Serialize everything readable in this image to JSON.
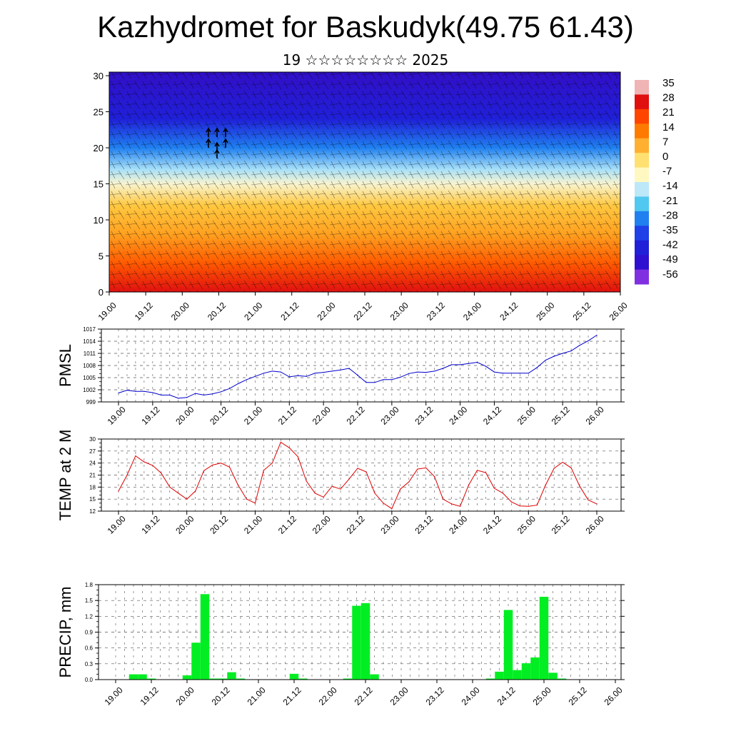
{
  "header": {
    "title": "Kazhydromet for Baskudyk(49.75 61.43)",
    "subtitle": "19 ☆☆☆☆☆☆☆☆ 2025"
  },
  "chart_data": [
    {
      "type": "heatmap",
      "name": "cross-section",
      "x_ticks": [
        "19.00",
        "19.12",
        "20.00",
        "20.12",
        "21.00",
        "21.12",
        "22.00",
        "22.12",
        "23.00",
        "23.12",
        "24.00",
        "24.12",
        "25.00",
        "25.12",
        "26.00"
      ],
      "y_ticks": [
        "0",
        "5",
        "10",
        "15",
        "20",
        "25",
        "30"
      ],
      "ylim": [
        0,
        30.5
      ],
      "colorbar_labels": [
        "35",
        "28",
        "21",
        "14",
        "7",
        "0",
        "-7",
        "-14",
        "-21",
        "-28",
        "-35",
        "-42",
        "-49",
        "-56"
      ],
      "colorbar_colors": [
        "#f0b4b4",
        "#e01010",
        "#ff4500",
        "#ff7a00",
        "#ffb030",
        "#ffe070",
        "#fff8c0",
        "#bde8f8",
        "#50c8f0",
        "#2080f0",
        "#2040e8",
        "#2020d8",
        "#3010d0",
        "#8030e0"
      ],
      "level_temperature": {
        "heights": [
          0,
          4,
          8,
          12,
          15,
          17,
          20,
          24,
          30
        ],
        "values": [
          30,
          22,
          12,
          2,
          -8,
          -20,
          -35,
          -48,
          -56
        ]
      }
    },
    {
      "type": "line",
      "name": "pmsl",
      "ylabel": "PMSL",
      "x_ticks": [
        "19.00",
        "19.12",
        "20.00",
        "20.12",
        "21.00",
        "21.12",
        "22.00",
        "22.12",
        "23.00",
        "23.12",
        "24.00",
        "24.12",
        "25.00",
        "25.12",
        "26.00"
      ],
      "y_ticks": [
        "999",
        "1002",
        "1005",
        "1008",
        "1011",
        "1014",
        "1017"
      ],
      "ylim": [
        999,
        1017
      ],
      "color": "#0000cc",
      "x": [
        0,
        3,
        6,
        9,
        12,
        15,
        18,
        21,
        24,
        27,
        30,
        33,
        36,
        39,
        42,
        45,
        48,
        51,
        54,
        57,
        60,
        63,
        66,
        69,
        72,
        75,
        78,
        81,
        84,
        87,
        90,
        93,
        96,
        99,
        102,
        105,
        108,
        111,
        114,
        117,
        120,
        123,
        126,
        129,
        132,
        135,
        138,
        141,
        144,
        147,
        150,
        153,
        156,
        159,
        162,
        165,
        168
      ],
      "values": [
        1001.2,
        1001.9,
        1001.6,
        1001.6,
        1001.3,
        1000.7,
        1000.7,
        999.9,
        1000.1,
        1001.1,
        1000.7,
        1001.0,
        1001.5,
        1002.3,
        1003.5,
        1004.5,
        1005.3,
        1006.1,
        1006.6,
        1006.4,
        1005.2,
        1005.5,
        1005.3,
        1006.1,
        1006.3,
        1006.6,
        1006.9,
        1007.3,
        1005.6,
        1003.8,
        1003.8,
        1004.5,
        1004.5,
        1005.1,
        1006.0,
        1006.4,
        1006.3,
        1006.6,
        1007.3,
        1008.2,
        1008.2,
        1008.5,
        1008.8,
        1007.8,
        1006.4,
        1006.1,
        1006.1,
        1006.1,
        1006.1,
        1007.5,
        1009.3,
        1010.3,
        1011.0,
        1011.6,
        1013.0,
        1014.1,
        1015.5
      ]
    },
    {
      "type": "line",
      "name": "temp2m",
      "ylabel": "TEMP at 2 M",
      "x_ticks": [
        "19.00",
        "19.12",
        "20.00",
        "20.12",
        "21.00",
        "21.12",
        "22.00",
        "22.12",
        "23.00",
        "23.12",
        "24.00",
        "24.12",
        "25.00",
        "25.12",
        "26.00"
      ],
      "y_ticks": [
        "12",
        "15",
        "18",
        "21",
        "24",
        "27",
        "30"
      ],
      "ylim": [
        12,
        30
      ],
      "color": "#dd0000",
      "x": [
        0,
        3,
        6,
        9,
        12,
        15,
        18,
        21,
        24,
        27,
        30,
        33,
        36,
        39,
        42,
        45,
        48,
        51,
        54,
        57,
        60,
        63,
        66,
        69,
        72,
        75,
        78,
        81,
        84,
        87,
        90,
        93,
        96,
        99,
        102,
        105,
        108,
        111,
        114,
        117,
        120,
        123,
        126,
        129,
        132,
        135,
        138,
        141,
        144,
        147,
        150,
        153,
        156,
        159,
        162,
        165,
        168
      ],
      "values": [
        17.0,
        21.0,
        25.8,
        24.3,
        23.4,
        21.5,
        18.0,
        16.5,
        15.0,
        17.0,
        22.1,
        23.5,
        24.0,
        23.0,
        18.5,
        15.0,
        14.0,
        22.2,
        24.0,
        29.2,
        27.8,
        25.6,
        19.5,
        16.5,
        15.5,
        18.2,
        17.5,
        20.0,
        22.7,
        21.8,
        16.5,
        14.0,
        12.6,
        17.5,
        19.3,
        22.5,
        22.8,
        20.6,
        15.0,
        13.8,
        13.2,
        18.5,
        22.2,
        21.6,
        17.7,
        16.5,
        14.3,
        13.3,
        13.2,
        13.5,
        18.5,
        22.7,
        24.2,
        22.8,
        18.2,
        14.8,
        13.8
      ]
    },
    {
      "type": "bar",
      "name": "precip",
      "ylabel": "PRECIP, mm",
      "x_ticks": [
        "19.00",
        "19.12",
        "20.00",
        "20.12",
        "21.00",
        "21.12",
        "22.00",
        "22.12",
        "23.00",
        "23.12",
        "24.00",
        "24.12",
        "25.00",
        "25.12",
        "26.00"
      ],
      "y_ticks": [
        "0.0",
        "0.3",
        "0.6",
        "0.9",
        "1.2",
        "1.5",
        "1.8"
      ],
      "ylim": [
        0,
        1.8
      ],
      "color": "#00ee22",
      "x": [
        6,
        9,
        12,
        24,
        27,
        30,
        33,
        36,
        39,
        42,
        60,
        63,
        78,
        81,
        84,
        87,
        126,
        129,
        132,
        135,
        138,
        141,
        144,
        147,
        150
      ],
      "values": [
        0.1,
        0.1,
        0.02,
        0.08,
        0.7,
        1.62,
        0.02,
        0.02,
        0.14,
        0.02,
        0.11,
        0.02,
        0.02,
        1.4,
        1.45,
        0.1,
        0.02,
        0.15,
        1.32,
        0.18,
        0.31,
        0.42,
        1.57,
        0.13,
        0.02
      ]
    }
  ]
}
